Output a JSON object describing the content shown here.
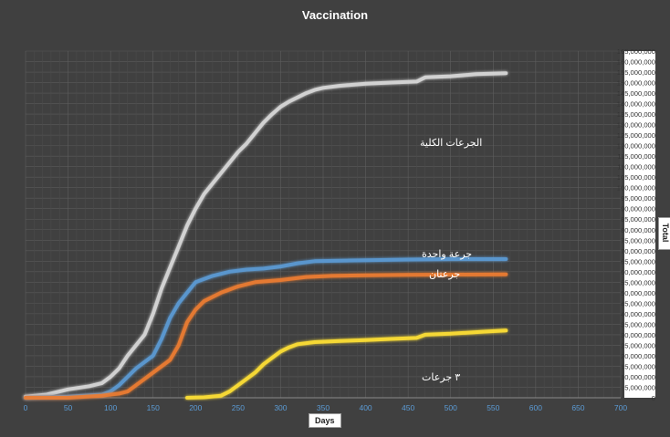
{
  "chart_data": {
    "type": "line",
    "title": "Vaccination",
    "xlabel": "Days",
    "ylabel": "Total",
    "xlim": [
      0,
      700
    ],
    "ylim": [
      0,
      165000000
    ],
    "x_ticks": [
      "0",
      "50",
      "100",
      "150",
      "200",
      "250",
      "300",
      "350",
      "400",
      "450",
      "500",
      "550",
      "600",
      "650",
      "700"
    ],
    "y_ticks": [
      "0",
      "5,000,000",
      "10,000,000",
      "15,000,000",
      "20,000,000",
      "25,000,000",
      "30,000,000",
      "35,000,000",
      "40,000,000",
      "45,000,000",
      "50,000,000",
      "55,000,000",
      "60,000,000",
      "65,000,000",
      "70,000,000",
      "75,000,000",
      "80,000,000",
      "85,000,000",
      "90,000,000",
      "95,000,000",
      "100,000,000",
      "105,000,000",
      "110,000,000",
      "115,000,000",
      "120,000,000",
      "125,000,000",
      "130,000,000",
      "135,000,000",
      "140,000,000",
      "145,000,000",
      "150,000,000",
      "155,000,000",
      "160,000,000",
      "165,000,000"
    ],
    "grid": true,
    "legend": "labels placed on chart",
    "series": [
      {
        "name": "الجرعات الكلية",
        "color": "#d9d9d9",
        "points": [
          [
            0,
            500000
          ],
          [
            25,
            1500000
          ],
          [
            50,
            4000000
          ],
          [
            75,
            5500000
          ],
          [
            90,
            7000000
          ],
          [
            100,
            10000000
          ],
          [
            110,
            14000000
          ],
          [
            120,
            20000000
          ],
          [
            130,
            25000000
          ],
          [
            140,
            30000000
          ],
          [
            150,
            40000000
          ],
          [
            160,
            52000000
          ],
          [
            170,
            62000000
          ],
          [
            180,
            72000000
          ],
          [
            190,
            82000000
          ],
          [
            200,
            90000000
          ],
          [
            210,
            97000000
          ],
          [
            220,
            102000000
          ],
          [
            230,
            107000000
          ],
          [
            240,
            112000000
          ],
          [
            250,
            117000000
          ],
          [
            260,
            121000000
          ],
          [
            270,
            126000000
          ],
          [
            280,
            131000000
          ],
          [
            290,
            135000000
          ],
          [
            300,
            138500000
          ],
          [
            310,
            141000000
          ],
          [
            320,
            143000000
          ],
          [
            330,
            145000000
          ],
          [
            340,
            146500000
          ],
          [
            350,
            147500000
          ],
          [
            370,
            148500000
          ],
          [
            400,
            149500000
          ],
          [
            430,
            150000000
          ],
          [
            460,
            150500000
          ],
          [
            470,
            152500000
          ],
          [
            500,
            153000000
          ],
          [
            530,
            154000000
          ],
          [
            565,
            154500000
          ]
        ]
      },
      {
        "name": "جرعة واحدة",
        "color": "#5b9bd5",
        "points": [
          [
            0,
            0
          ],
          [
            50,
            500000
          ],
          [
            90,
            1500000
          ],
          [
            100,
            3000000
          ],
          [
            110,
            6000000
          ],
          [
            120,
            10000000
          ],
          [
            130,
            14000000
          ],
          [
            140,
            17000000
          ],
          [
            150,
            20000000
          ],
          [
            160,
            28000000
          ],
          [
            170,
            38000000
          ],
          [
            180,
            45000000
          ],
          [
            190,
            50000000
          ],
          [
            200,
            55000000
          ],
          [
            220,
            58000000
          ],
          [
            240,
            60000000
          ],
          [
            260,
            61000000
          ],
          [
            280,
            61500000
          ],
          [
            300,
            62500000
          ],
          [
            320,
            64000000
          ],
          [
            340,
            65000000
          ],
          [
            400,
            65500000
          ],
          [
            450,
            65800000
          ],
          [
            500,
            66000000
          ],
          [
            565,
            66000000
          ]
        ]
      },
      {
        "name": "جرعتان",
        "color": "#ed7d31",
        "points": [
          [
            0,
            0
          ],
          [
            50,
            0
          ],
          [
            90,
            1000000
          ],
          [
            110,
            2000000
          ],
          [
            120,
            3000000
          ],
          [
            130,
            6000000
          ],
          [
            140,
            9000000
          ],
          [
            150,
            12000000
          ],
          [
            160,
            15000000
          ],
          [
            170,
            18000000
          ],
          [
            180,
            25000000
          ],
          [
            190,
            36000000
          ],
          [
            200,
            42000000
          ],
          [
            210,
            46000000
          ],
          [
            230,
            50000000
          ],
          [
            250,
            53000000
          ],
          [
            270,
            55000000
          ],
          [
            300,
            56000000
          ],
          [
            330,
            57500000
          ],
          [
            360,
            58000000
          ],
          [
            400,
            58300000
          ],
          [
            450,
            58500000
          ],
          [
            500,
            58600000
          ],
          [
            565,
            58700000
          ]
        ]
      },
      {
        "name": "٣ جرعات",
        "color": "#ffe135",
        "points": [
          [
            190,
            0
          ],
          [
            210,
            200000
          ],
          [
            230,
            1000000
          ],
          [
            240,
            3000000
          ],
          [
            250,
            6000000
          ],
          [
            260,
            9000000
          ],
          [
            270,
            12000000
          ],
          [
            280,
            16000000
          ],
          [
            290,
            19000000
          ],
          [
            300,
            22000000
          ],
          [
            310,
            24000000
          ],
          [
            320,
            25500000
          ],
          [
            340,
            26500000
          ],
          [
            370,
            27000000
          ],
          [
            400,
            27500000
          ],
          [
            430,
            28000000
          ],
          [
            460,
            28500000
          ],
          [
            470,
            30000000
          ],
          [
            500,
            30500000
          ],
          [
            540,
            31500000
          ],
          [
            565,
            32000000
          ]
        ]
      }
    ]
  }
}
